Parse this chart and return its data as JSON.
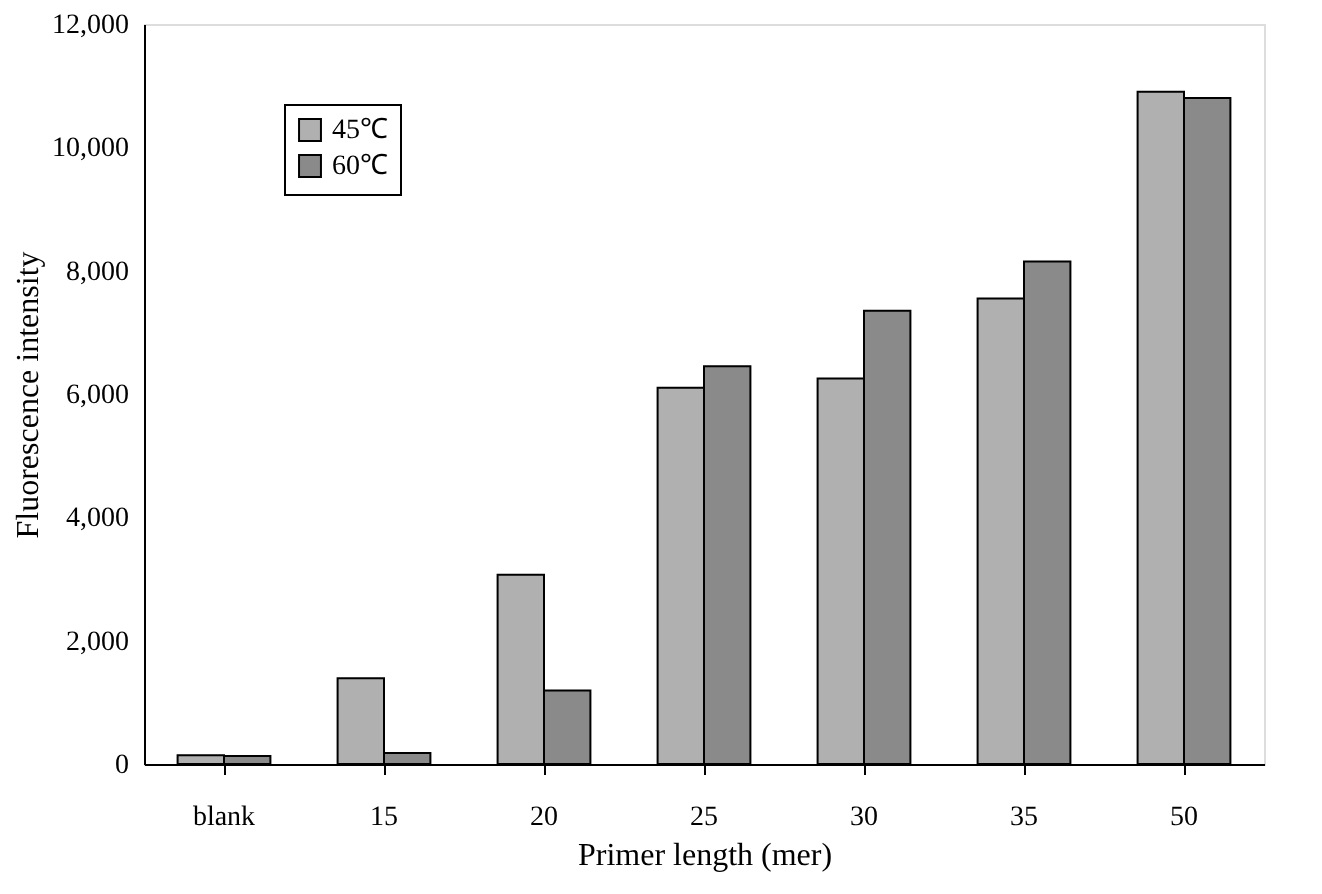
{
  "chart_data": {
    "type": "bar",
    "xlabel": "Primer length (mer)",
    "ylabel": "Fluorescence intensity",
    "categories": [
      "blank",
      "15",
      "20",
      "25",
      "30",
      "35",
      "50"
    ],
    "series": [
      {
        "name": "45℃",
        "color": "#b0b0b0",
        "values": [
          140,
          1390,
          3070,
          6100,
          6250,
          7550,
          10900
        ]
      },
      {
        "name": "60℃",
        "color": "#8a8a8a",
        "values": [
          130,
          180,
          1190,
          6450,
          7350,
          8150,
          10800
        ]
      }
    ],
    "ylim": [
      0,
      12000
    ],
    "yticks": [
      0,
      {
        "value": 2000,
        "label": "2,000"
      },
      {
        "value": 4000,
        "label": "4,000"
      },
      {
        "value": 6000,
        "label": "6,000"
      },
      {
        "value": 8000,
        "label": "8,000"
      },
      {
        "value": 10000,
        "label": "10,000"
      },
      {
        "value": 12000,
        "label": "12,000"
      }
    ],
    "grid": false,
    "legend": "top left"
  }
}
